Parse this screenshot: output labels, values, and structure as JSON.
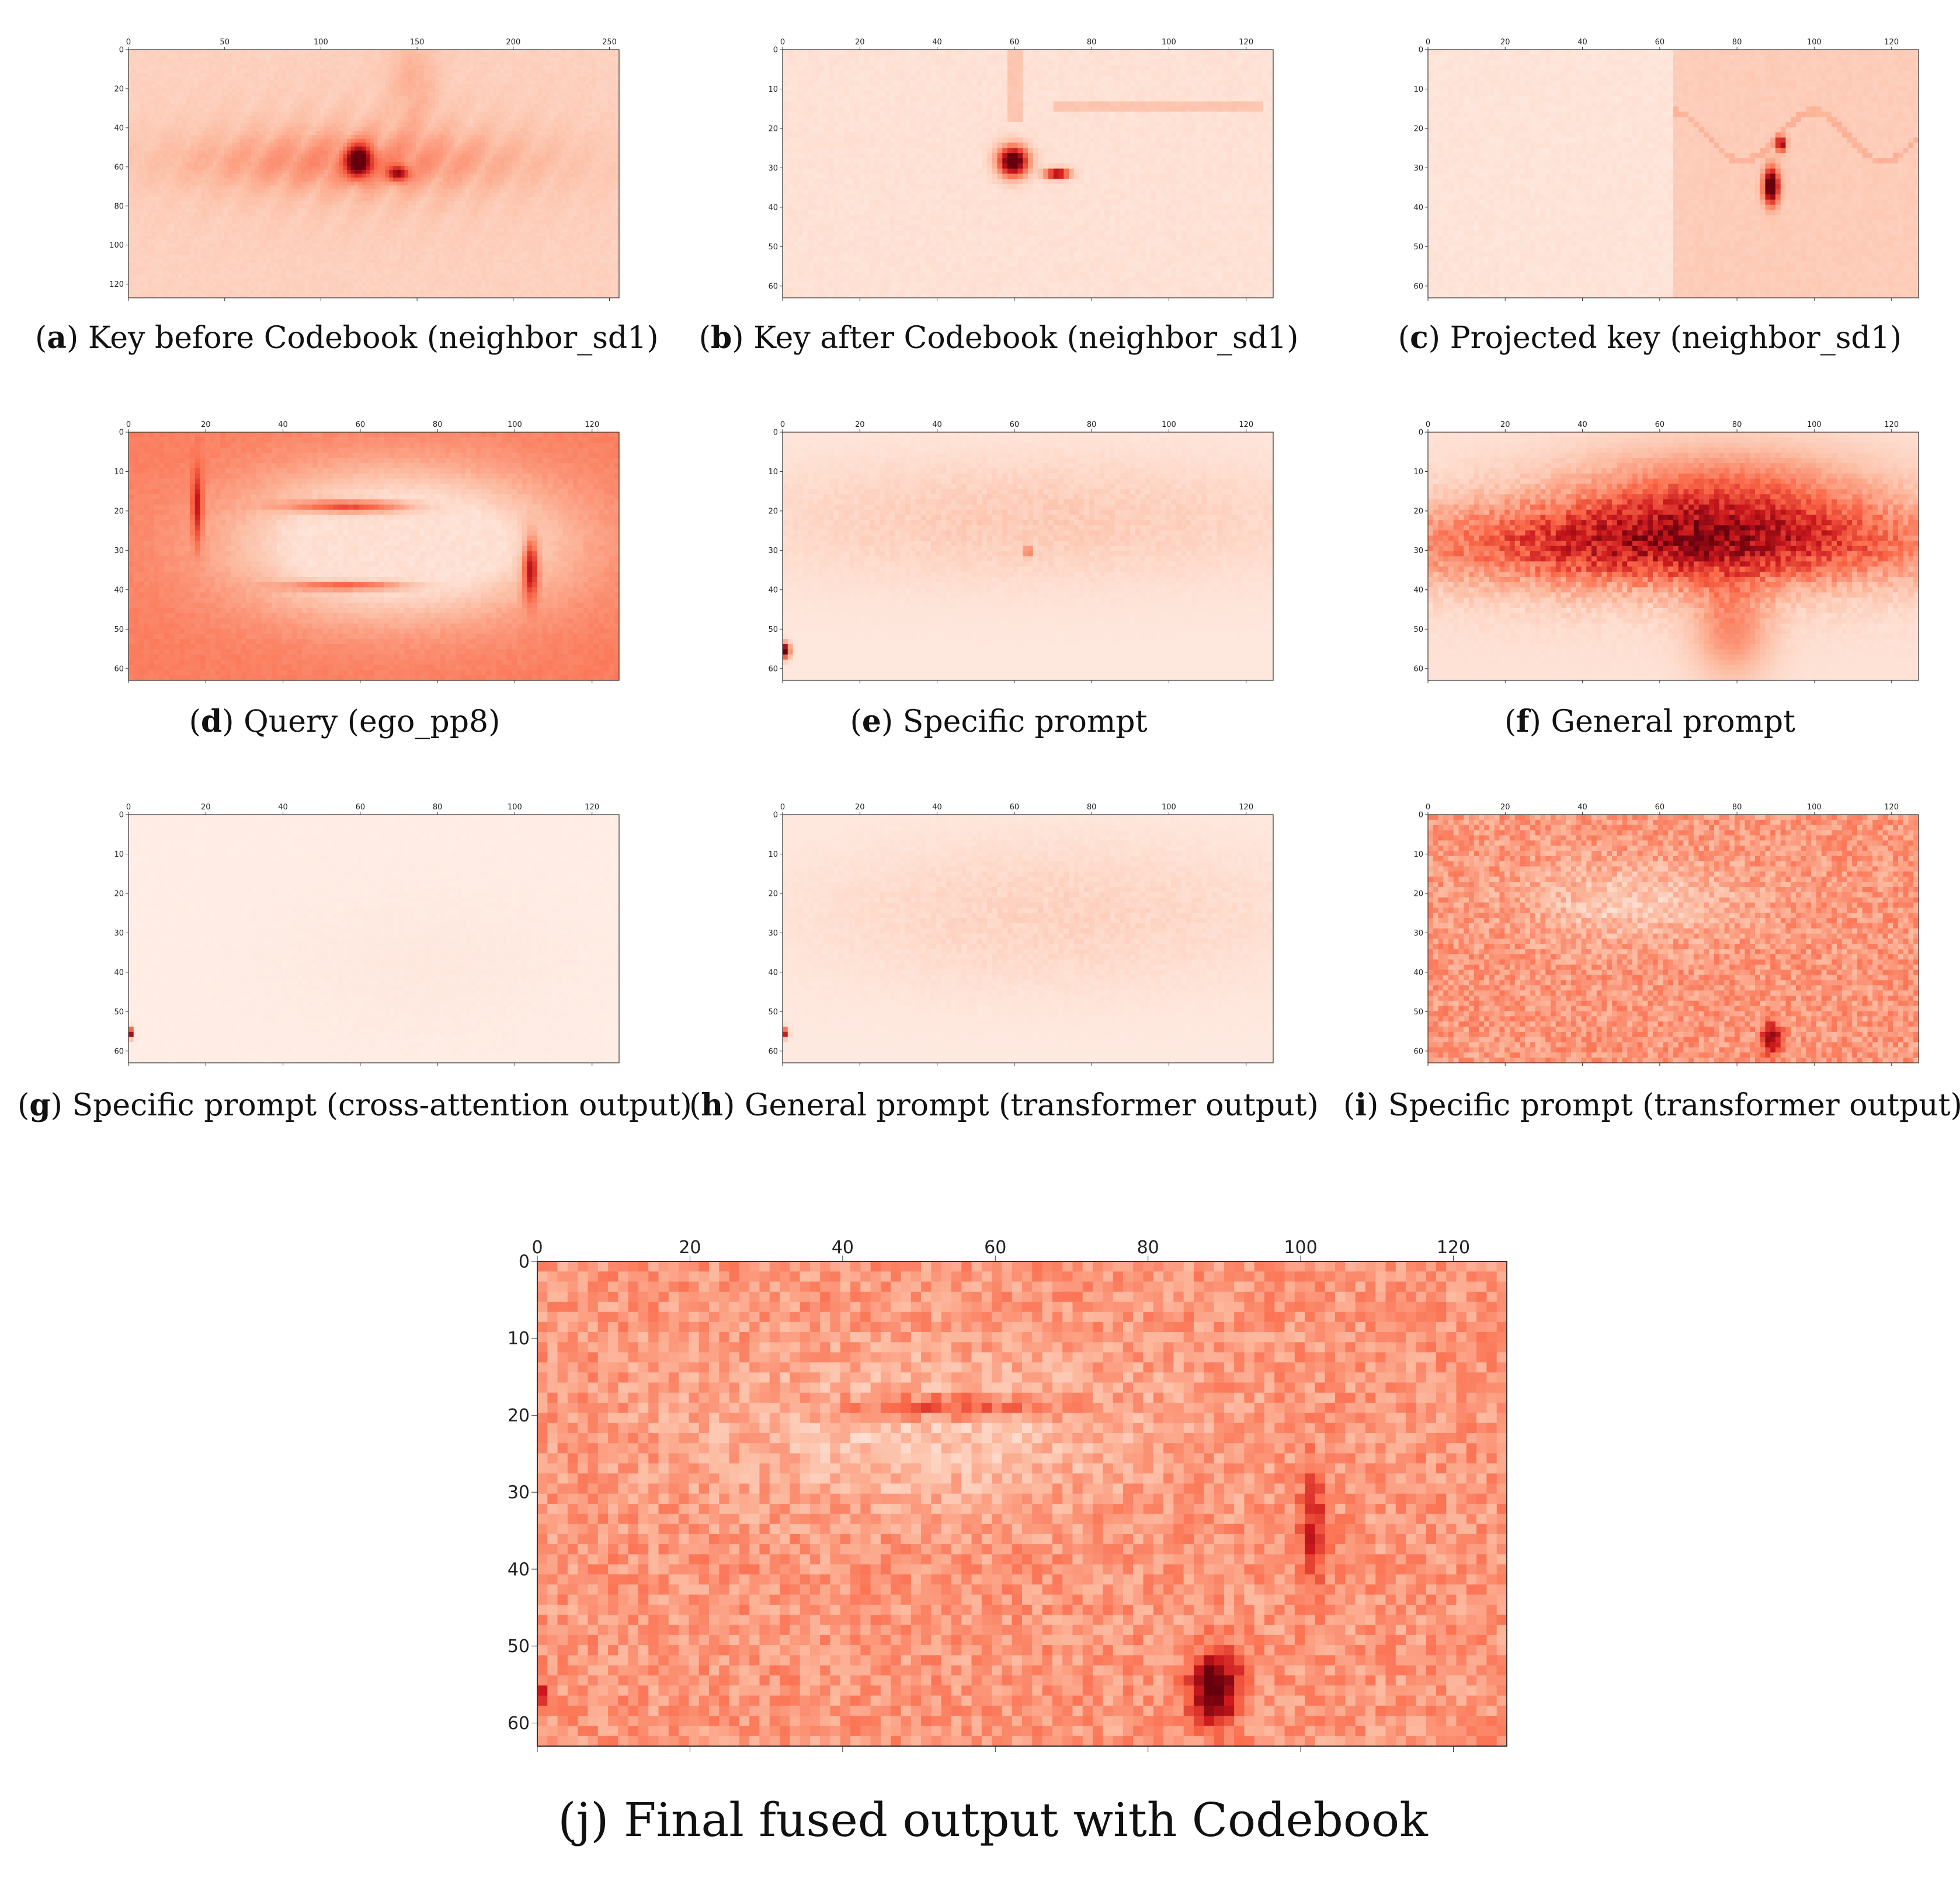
{
  "colors": {
    "low": "#fff5f0",
    "high": "#67000d",
    "frame": "#333333"
  },
  "chart_data": [
    {
      "id": "a",
      "type": "heatmap",
      "colormap": "Reds",
      "letter": "a",
      "label": "Key before Codebook (neighbor_sd1)",
      "xlim": [
        0,
        255
      ],
      "ylim": [
        127,
        0
      ],
      "xticks": [
        "0",
        "50",
        "100",
        "150",
        "200",
        "250"
      ],
      "xtick_values": [
        0,
        50,
        100,
        150,
        200,
        250
      ],
      "yticks": [
        "0",
        "20",
        "40",
        "60",
        "80",
        "100",
        "120"
      ],
      "ytick_values": [
        0,
        20,
        40,
        60,
        80,
        100,
        120
      ]
    },
    {
      "id": "b",
      "type": "heatmap",
      "colormap": "Reds",
      "letter": "b",
      "label": "Key after Codebook (neighbor_sd1)",
      "xlim": [
        0,
        127
      ],
      "ylim": [
        63,
        0
      ],
      "xticks": [
        "0",
        "20",
        "40",
        "60",
        "80",
        "100",
        "120"
      ],
      "xtick_values": [
        0,
        20,
        40,
        60,
        80,
        100,
        120
      ],
      "yticks": [
        "0",
        "10",
        "20",
        "30",
        "40",
        "50",
        "60"
      ],
      "ytick_values": [
        0,
        10,
        20,
        30,
        40,
        50,
        60
      ]
    },
    {
      "id": "c",
      "type": "heatmap",
      "colormap": "Reds",
      "letter": "c",
      "label": "Projected key (neighbor_sd1)",
      "xlim": [
        0,
        127
      ],
      "ylim": [
        63,
        0
      ],
      "xticks": [
        "0",
        "20",
        "40",
        "60",
        "80",
        "100",
        "120"
      ],
      "xtick_values": [
        0,
        20,
        40,
        60,
        80,
        100,
        120
      ],
      "yticks": [
        "0",
        "10",
        "20",
        "30",
        "40",
        "50",
        "60"
      ],
      "ytick_values": [
        0,
        10,
        20,
        30,
        40,
        50,
        60
      ]
    },
    {
      "id": "d",
      "type": "heatmap",
      "colormap": "Reds",
      "letter": "d",
      "label": "Query (ego_pp8)",
      "xlim": [
        0,
        127
      ],
      "ylim": [
        63,
        0
      ],
      "xticks": [
        "0",
        "20",
        "40",
        "60",
        "80",
        "100",
        "120"
      ],
      "xtick_values": [
        0,
        20,
        40,
        60,
        80,
        100,
        120
      ],
      "yticks": [
        "0",
        "10",
        "20",
        "30",
        "40",
        "50",
        "60"
      ],
      "ytick_values": [
        0,
        10,
        20,
        30,
        40,
        50,
        60
      ]
    },
    {
      "id": "e",
      "type": "heatmap",
      "colormap": "Reds",
      "letter": "e",
      "label": "Specific prompt",
      "xlim": [
        0,
        127
      ],
      "ylim": [
        63,
        0
      ],
      "xticks": [
        "0",
        "20",
        "40",
        "60",
        "80",
        "100",
        "120"
      ],
      "xtick_values": [
        0,
        20,
        40,
        60,
        80,
        100,
        120
      ],
      "yticks": [
        "0",
        "10",
        "20",
        "30",
        "40",
        "50",
        "60"
      ],
      "ytick_values": [
        0,
        10,
        20,
        30,
        40,
        50,
        60
      ]
    },
    {
      "id": "f",
      "type": "heatmap",
      "colormap": "Reds",
      "letter": "f",
      "label": "General prompt",
      "xlim": [
        0,
        127
      ],
      "ylim": [
        63,
        0
      ],
      "xticks": [
        "0",
        "20",
        "40",
        "60",
        "80",
        "100",
        "120"
      ],
      "xtick_values": [
        0,
        20,
        40,
        60,
        80,
        100,
        120
      ],
      "yticks": [
        "0",
        "10",
        "20",
        "30",
        "40",
        "50",
        "60"
      ],
      "ytick_values": [
        0,
        10,
        20,
        30,
        40,
        50,
        60
      ]
    },
    {
      "id": "g",
      "type": "heatmap",
      "colormap": "Reds",
      "letter": "g",
      "label": "Specific prompt (cross-attention output)",
      "xlim": [
        0,
        127
      ],
      "ylim": [
        63,
        0
      ],
      "xticks": [
        "0",
        "20",
        "40",
        "60",
        "80",
        "100",
        "120"
      ],
      "xtick_values": [
        0,
        20,
        40,
        60,
        80,
        100,
        120
      ],
      "yticks": [
        "0",
        "10",
        "20",
        "30",
        "40",
        "50",
        "60"
      ],
      "ytick_values": [
        0,
        10,
        20,
        30,
        40,
        50,
        60
      ]
    },
    {
      "id": "h",
      "type": "heatmap",
      "colormap": "Reds",
      "letter": "h",
      "label": "General prompt (transformer output)",
      "xlim": [
        0,
        127
      ],
      "ylim": [
        63,
        0
      ],
      "xticks": [
        "0",
        "20",
        "40",
        "60",
        "80",
        "100",
        "120"
      ],
      "xtick_values": [
        0,
        20,
        40,
        60,
        80,
        100,
        120
      ],
      "yticks": [
        "0",
        "10",
        "20",
        "30",
        "40",
        "50",
        "60"
      ],
      "ytick_values": [
        0,
        10,
        20,
        30,
        40,
        50,
        60
      ]
    },
    {
      "id": "i",
      "type": "heatmap",
      "colormap": "Reds",
      "letter": "i",
      "label": "Specific prompt (transformer output)",
      "xlim": [
        0,
        127
      ],
      "ylim": [
        63,
        0
      ],
      "xticks": [
        "0",
        "20",
        "40",
        "60",
        "80",
        "100",
        "120"
      ],
      "xtick_values": [
        0,
        20,
        40,
        60,
        80,
        100,
        120
      ],
      "yticks": [
        "0",
        "10",
        "20",
        "30",
        "40",
        "50",
        "60"
      ],
      "ytick_values": [
        0,
        10,
        20,
        30,
        40,
        50,
        60
      ]
    },
    {
      "id": "j",
      "type": "heatmap",
      "colormap": "Reds",
      "letter": "j",
      "label": "(j) Final fused output with Codebook",
      "xlim": [
        0,
        127
      ],
      "ylim": [
        63,
        0
      ],
      "xticks": [
        "0",
        "20",
        "40",
        "60",
        "80",
        "100",
        "120"
      ],
      "xtick_values": [
        0,
        20,
        40,
        60,
        80,
        100,
        120
      ],
      "yticks": [
        "0",
        "10",
        "20",
        "30",
        "40",
        "50",
        "60"
      ],
      "ytick_values": [
        0,
        10,
        20,
        30,
        40,
        50,
        60
      ]
    }
  ]
}
